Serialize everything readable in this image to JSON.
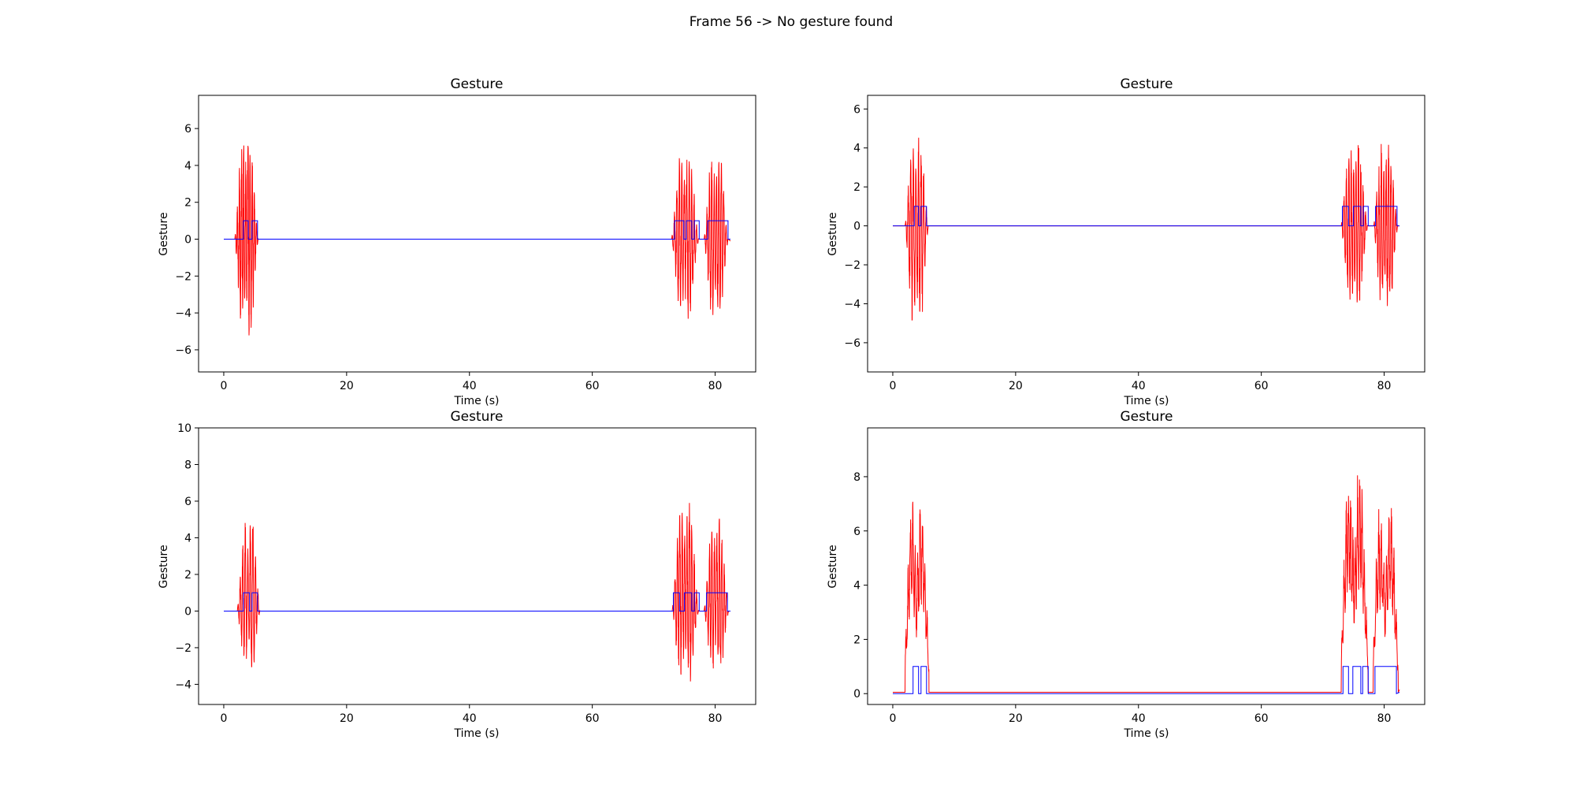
{
  "figure": {
    "suptitle": "Frame 56 -> No gesture found"
  },
  "chart_data": [
    {
      "type": "line",
      "title": "Gesture",
      "xlabel": "Time (s)",
      "ylabel": "Gesture",
      "xlim": [
        -4.1,
        86.6
      ],
      "ylim": [
        -7.2,
        7.8
      ],
      "xticks": [
        0,
        20,
        40,
        60,
        80
      ],
      "yticks": [
        -6,
        -4,
        -2,
        0,
        2,
        4,
        6
      ],
      "grid": false,
      "legend": "none",
      "series": [
        {
          "color": "#ff0000",
          "kind": "signal",
          "base": 0.0,
          "end_base": -0.1,
          "segments": [
            {
              "start": 1.8,
              "end": 5.6,
              "amp": 6.8,
              "cycles": 11,
              "offset": 0.3,
              "seed": 1
            },
            {
              "start": 72.9,
              "end": 77.3,
              "amp": 5.6,
              "cycles": 11,
              "offset": 0.3,
              "seed": 2
            },
            {
              "start": 78.2,
              "end": 82.1,
              "amp": 5.6,
              "cycles": 10,
              "offset": 0.2,
              "seed": 3
            }
          ]
        },
        {
          "color": "#0000ff",
          "kind": "step",
          "base": 0.0,
          "high": 1.0,
          "end_base": 0.0,
          "pulses": [
            [
              3.2,
              4.0
            ],
            [
              4.6,
              5.5
            ],
            [
              73.4,
              74.9
            ],
            [
              75.3,
              76.2
            ],
            [
              76.6,
              77.4
            ],
            [
              78.8,
              82.1
            ]
          ]
        }
      ]
    },
    {
      "type": "line",
      "title": "Gesture",
      "xlabel": "Time (s)",
      "ylabel": "Gesture",
      "xlim": [
        -4.1,
        86.6
      ],
      "ylim": [
        -7.5,
        6.7
      ],
      "xticks": [
        0,
        20,
        40,
        60,
        80
      ],
      "yticks": [
        -6,
        -4,
        -2,
        0,
        2,
        4,
        6
      ],
      "grid": false,
      "legend": "none",
      "series": [
        {
          "color": "#ff0000",
          "kind": "signal",
          "base": 0.0,
          "end_base": 0.0,
          "segments": [
            {
              "start": 2.0,
              "end": 5.8,
              "amp": 6.2,
              "cycles": 9,
              "offset": -0.2,
              "seed": 4
            },
            {
              "start": 73.0,
              "end": 77.3,
              "amp": 5.4,
              "cycles": 11,
              "offset": 0.0,
              "seed": 5
            },
            {
              "start": 78.3,
              "end": 82.2,
              "amp": 5.4,
              "cycles": 10,
              "offset": 0.0,
              "seed": 6
            }
          ]
        },
        {
          "color": "#0000ff",
          "kind": "step",
          "base": 0.0,
          "high": 1.0,
          "end_base": 0.0,
          "pulses": [
            [
              3.5,
              4.2
            ],
            [
              4.6,
              5.5
            ],
            [
              73.2,
              74.2
            ],
            [
              75.0,
              76.2
            ],
            [
              76.6,
              77.4
            ],
            [
              78.6,
              82.1
            ]
          ]
        }
      ]
    },
    {
      "type": "line",
      "title": "Gesture",
      "xlabel": "Time (s)",
      "ylabel": "Gesture",
      "xlim": [
        -4.1,
        86.6
      ],
      "ylim": [
        -5.1,
        10.0
      ],
      "xticks": [
        0,
        20,
        40,
        60,
        80
      ],
      "yticks": [
        -4,
        -2,
        0,
        2,
        4,
        6,
        8,
        10
      ],
      "grid": false,
      "legend": "none",
      "series": [
        {
          "color": "#ff0000",
          "kind": "signal",
          "base": 0.0,
          "end_base": 0.0,
          "segments": [
            {
              "start": 2.2,
              "end": 5.9,
              "amp": 5.2,
              "cycles": 9,
              "offset": 1.0,
              "seed": 7
            },
            {
              "start": 73.0,
              "end": 77.3,
              "amp": 6.0,
              "cycles": 11,
              "offset": 1.2,
              "seed": 8
            },
            {
              "start": 78.2,
              "end": 82.2,
              "amp": 5.2,
              "cycles": 10,
              "offset": 0.8,
              "seed": 9
            }
          ]
        },
        {
          "color": "#0000ff",
          "kind": "step",
          "base": 0.0,
          "high": 1.0,
          "end_base": 0.0,
          "pulses": [
            [
              3.2,
              4.2
            ],
            [
              4.6,
              5.5
            ],
            [
              73.2,
              74.2
            ],
            [
              75.0,
              76.2
            ],
            [
              76.6,
              77.4
            ],
            [
              78.6,
              82.0
            ]
          ]
        }
      ]
    },
    {
      "type": "line",
      "title": "Gesture",
      "xlabel": "Time (s)",
      "ylabel": "Gesture",
      "xlim": [
        -4.1,
        86.6
      ],
      "ylim": [
        -0.4,
        9.8
      ],
      "xticks": [
        0,
        20,
        40,
        60,
        80
      ],
      "yticks": [
        0,
        2,
        4,
        6,
        8
      ],
      "grid": false,
      "legend": "none",
      "series": [
        {
          "color": "#ff0000",
          "kind": "positive",
          "base": 0.05,
          "end_base": 0.15,
          "segments": [
            {
              "start": 2.0,
              "end": 5.9,
              "amp": 8.2,
              "cycles": 10,
              "offset": 0.0,
              "seed": 10
            },
            {
              "start": 73.0,
              "end": 77.4,
              "amp": 9.3,
              "cycles": 12,
              "offset": 0.0,
              "seed": 11
            },
            {
              "start": 78.2,
              "end": 82.3,
              "amp": 8.0,
              "cycles": 10,
              "offset": 0.0,
              "seed": 12
            }
          ]
        },
        {
          "color": "#0000ff",
          "kind": "step",
          "base": 0.0,
          "high": 1.0,
          "end_base": 0.05,
          "pulses": [
            [
              3.3,
              4.2
            ],
            [
              4.6,
              5.5
            ],
            [
              73.3,
              74.2
            ],
            [
              74.9,
              76.2
            ],
            [
              76.5,
              77.4
            ],
            [
              78.5,
              82.0
            ]
          ]
        }
      ]
    }
  ]
}
